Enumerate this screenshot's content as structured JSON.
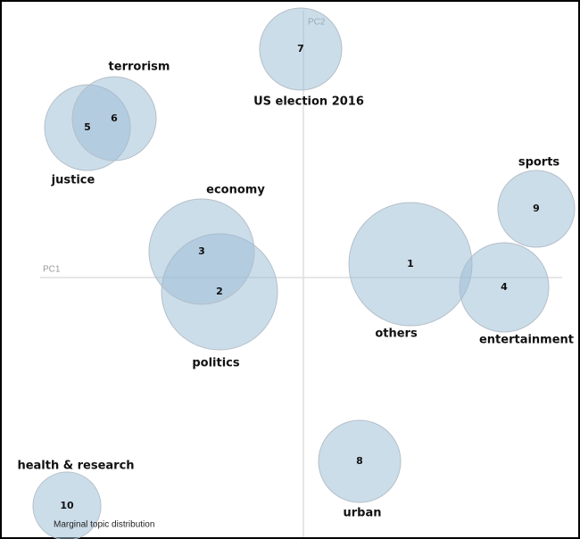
{
  "axes": {
    "x_label": "PC1",
    "y_label": "PC2"
  },
  "topics": [
    {
      "id": "1",
      "label": "others"
    },
    {
      "id": "2",
      "label": "politics"
    },
    {
      "id": "3",
      "label": "economy"
    },
    {
      "id": "4",
      "label": "entertainment"
    },
    {
      "id": "5",
      "label": "justice"
    },
    {
      "id": "6",
      "label": "terrorism"
    },
    {
      "id": "7",
      "label": "US election 2016"
    },
    {
      "id": "8",
      "label": "urban"
    },
    {
      "id": "9",
      "label": "sports"
    },
    {
      "id": "10",
      "label": "health & research"
    }
  ],
  "legend": "Marginal topic distribution"
}
